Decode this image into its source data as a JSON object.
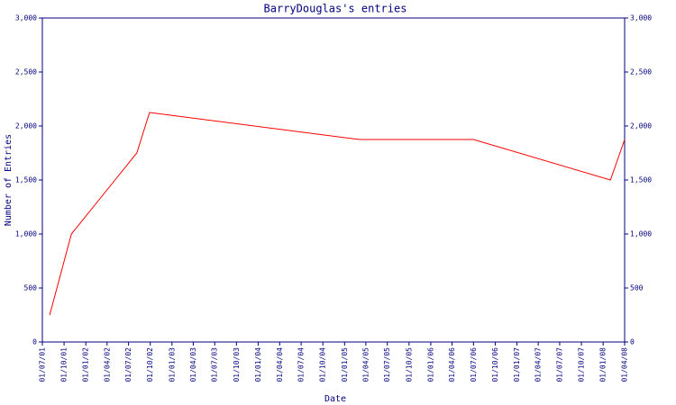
{
  "chart_data": {
    "type": "line",
    "title": "BarryDouglas's entries",
    "x_label": "Date",
    "y_label": "Number of Entries",
    "x": [
      "2001-08-01",
      "2001-11-01",
      "2002-08-05",
      "2002-09-28",
      "2005-03-05",
      "2006-07-01",
      "2008-02-01",
      "2008-04-01"
    ],
    "series": [
      {
        "color": "#ff0000",
        "values": [
          250,
          1000,
          1750,
          2125,
          1875,
          1875,
          1500,
          1875
        ]
      }
    ],
    "xlim": [
      "2001-07-01",
      "2008-04-01"
    ],
    "xticks": [
      {
        "value": "2001-07-01",
        "label": "01/07/01"
      },
      {
        "value": "2001-10-01",
        "label": "01/10/01"
      },
      {
        "value": "2002-01-01",
        "label": "01/01/02"
      },
      {
        "value": "2002-04-01",
        "label": "01/04/02"
      },
      {
        "value": "2002-07-01",
        "label": "01/07/02"
      },
      {
        "value": "2002-10-01",
        "label": "01/10/02"
      },
      {
        "value": "2003-01-01",
        "label": "01/01/03"
      },
      {
        "value": "2003-04-01",
        "label": "01/04/03"
      },
      {
        "value": "2003-07-01",
        "label": "01/07/03"
      },
      {
        "value": "2003-10-01",
        "label": "01/10/03"
      },
      {
        "value": "2004-01-01",
        "label": "01/01/04"
      },
      {
        "value": "2004-04-01",
        "label": "01/04/04"
      },
      {
        "value": "2004-07-01",
        "label": "01/07/04"
      },
      {
        "value": "2004-10-01",
        "label": "01/10/04"
      },
      {
        "value": "2005-01-01",
        "label": "01/01/05"
      },
      {
        "value": "2005-04-01",
        "label": "01/04/05"
      },
      {
        "value": "2005-07-01",
        "label": "01/07/05"
      },
      {
        "value": "2005-10-01",
        "label": "01/10/05"
      },
      {
        "value": "2006-01-01",
        "label": "01/01/06"
      },
      {
        "value": "2006-04-01",
        "label": "01/04/06"
      },
      {
        "value": "2006-07-01",
        "label": "01/07/06"
      },
      {
        "value": "2006-10-01",
        "label": "01/10/06"
      },
      {
        "value": "2007-01-01",
        "label": "01/01/07"
      },
      {
        "value": "2007-04-01",
        "label": "01/04/07"
      },
      {
        "value": "2007-07-01",
        "label": "01/07/07"
      },
      {
        "value": "2007-10-01",
        "label": "01/10/07"
      },
      {
        "value": "2008-01-01",
        "label": "01/01/08"
      },
      {
        "value": "2008-04-01",
        "label": "01/04/08"
      }
    ],
    "ylim": [
      0,
      3000
    ],
    "yticks": [
      0,
      500,
      {
        "value": 1000,
        "label": "1,000"
      },
      {
        "value": 1500,
        "label": "1,500"
      },
      {
        "value": 2000,
        "label": "2,000"
      },
      {
        "value": 2500,
        "label": "2,500"
      },
      {
        "value": 3000,
        "label": "3,000"
      }
    ],
    "grid": false
  }
}
